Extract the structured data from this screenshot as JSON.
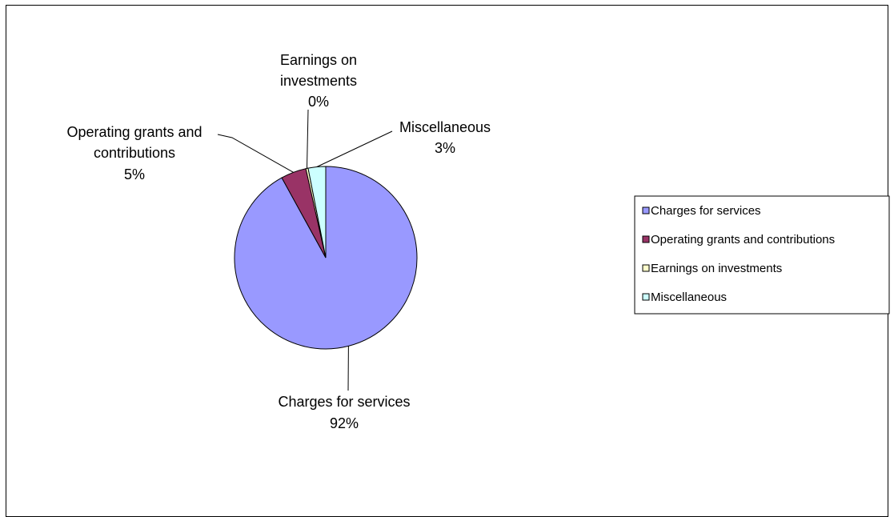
{
  "chart_data": {
    "type": "pie",
    "title": "",
    "slices": [
      {
        "label": "Charges for services",
        "value": 92,
        "display": "92%",
        "color": "#9999FF"
      },
      {
        "label": "Operating grants and contributions",
        "value": 4.5,
        "display": "5%",
        "color": "#993366"
      },
      {
        "label": "Earnings on investments",
        "value": 0.4,
        "display": "0%",
        "color": "#FFFFCC"
      },
      {
        "label": "Miscellaneous",
        "value": 3.1,
        "display": "3%",
        "color": "#CCFFFF"
      }
    ],
    "data_labels": [
      {
        "lines": [
          "Charges for services",
          "92%"
        ]
      },
      {
        "lines": [
          "Operating grants and",
          "contributions",
          "5%"
        ]
      },
      {
        "lines": [
          "Earnings on",
          "investments",
          "0%"
        ]
      },
      {
        "lines": [
          "Miscellaneous",
          "3%"
        ]
      }
    ],
    "legend": {
      "position": "right",
      "entries": [
        "Charges for services",
        "Operating grants and contributions",
        "Earnings on investments",
        "Miscellaneous"
      ]
    }
  }
}
